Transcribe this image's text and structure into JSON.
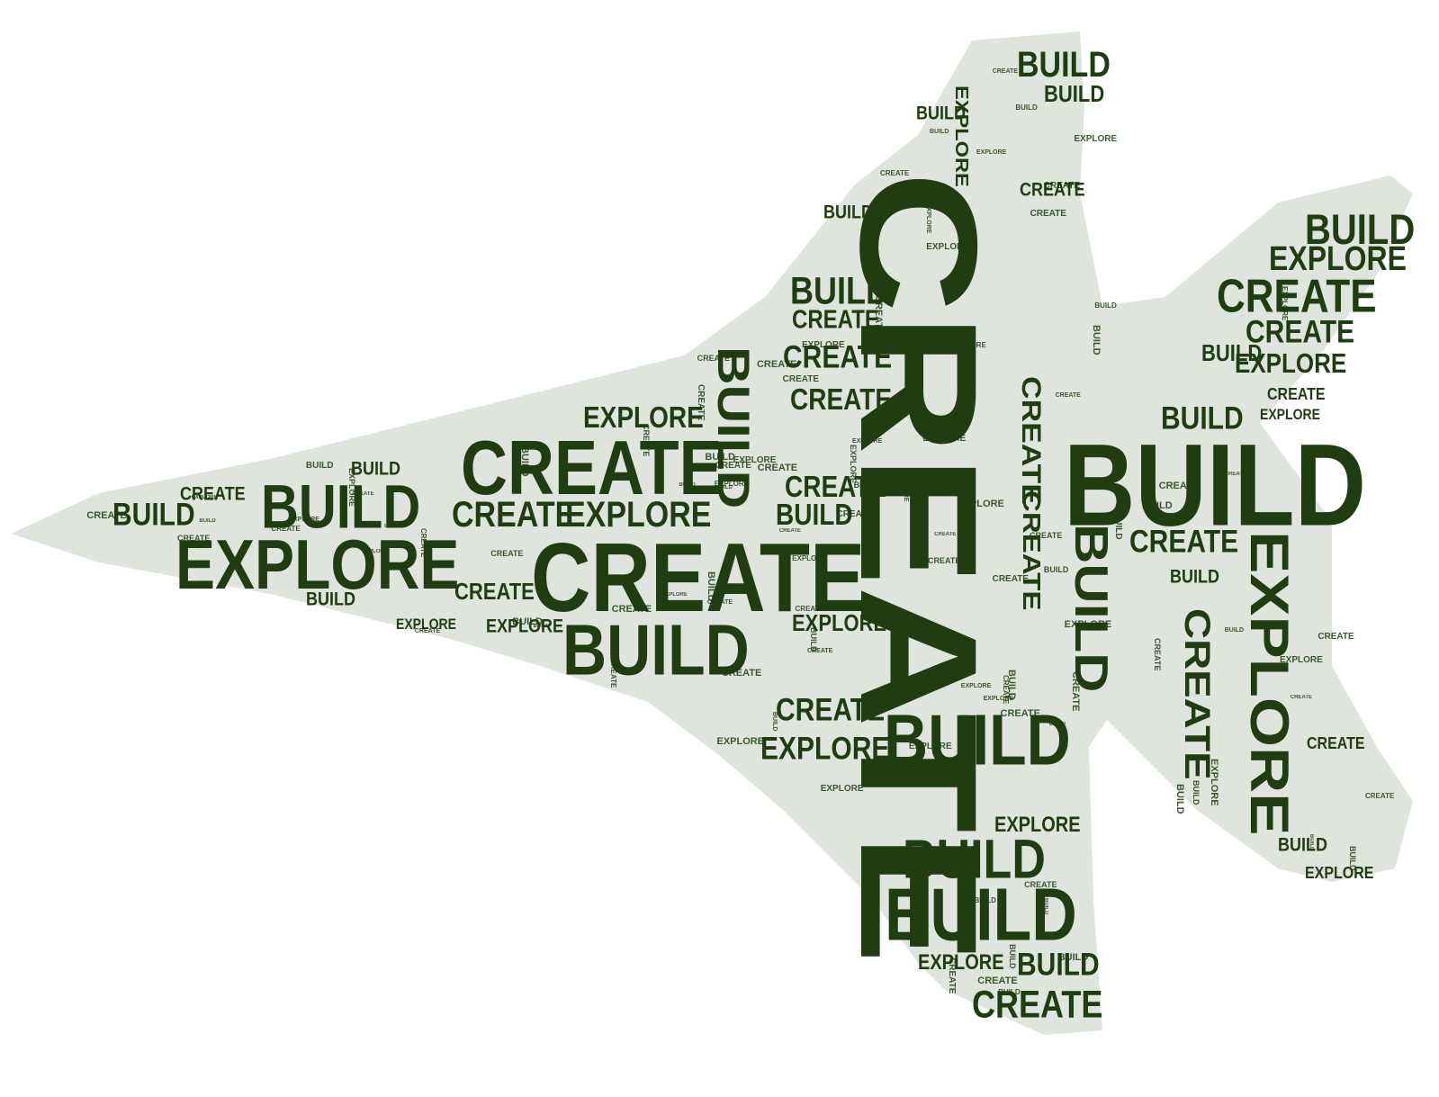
{
  "colors": {
    "text": "#1f3d10",
    "background": "#ffffff",
    "shape_fill": "#1f3d10"
  },
  "shape": "fighter-jet",
  "words": {
    "create": "CREATE",
    "build": "BUILD",
    "explore": "EXPLORE"
  }
}
